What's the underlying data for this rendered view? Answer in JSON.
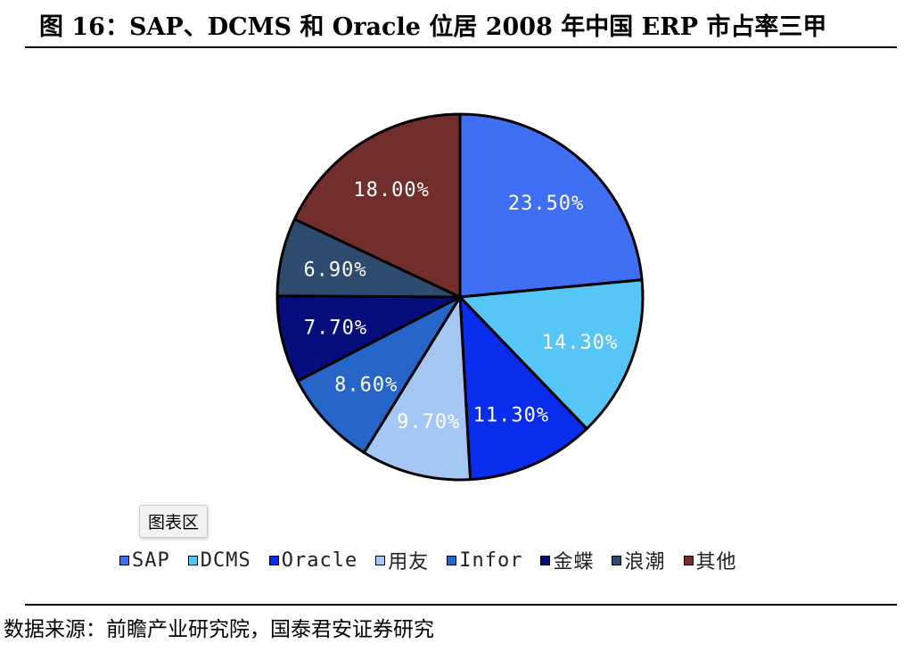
{
  "header": {
    "title": "图 16：SAP、DCMS 和 Oracle 位居 2008 年中国 ERP 市占率三甲"
  },
  "tooltip": {
    "label": "图表区"
  },
  "footer": {
    "source": "数据来源：前瞻产业研究院，国泰君安证券研究"
  },
  "chart_data": {
    "type": "pie",
    "title": "",
    "start_angle_deg": 0,
    "direction": "clockwise",
    "legend_position": "bottom",
    "slices": [
      {
        "name": "SAP",
        "value": 23.5,
        "label": "23.50%",
        "color": "#3f6ff5"
      },
      {
        "name": "DCMS",
        "value": 14.3,
        "label": "14.30%",
        "color": "#56c6f6"
      },
      {
        "name": "Oracle",
        "value": 11.3,
        "label": "11.30%",
        "color": "#0a2cee"
      },
      {
        "name": "用友",
        "value": 9.7,
        "label": "9.70%",
        "color": "#a4c8f3"
      },
      {
        "name": "Infor",
        "value": 8.6,
        "label": "8.60%",
        "color": "#2566c8"
      },
      {
        "name": "金蝶",
        "value": 7.7,
        "label": "7.70%",
        "color": "#050e7c"
      },
      {
        "name": "浪潮",
        "value": 6.9,
        "label": "6.90%",
        "color": "#2d4a6f"
      },
      {
        "name": "其他",
        "value": 18.0,
        "label": "18.00%",
        "color": "#722e2c"
      }
    ]
  }
}
